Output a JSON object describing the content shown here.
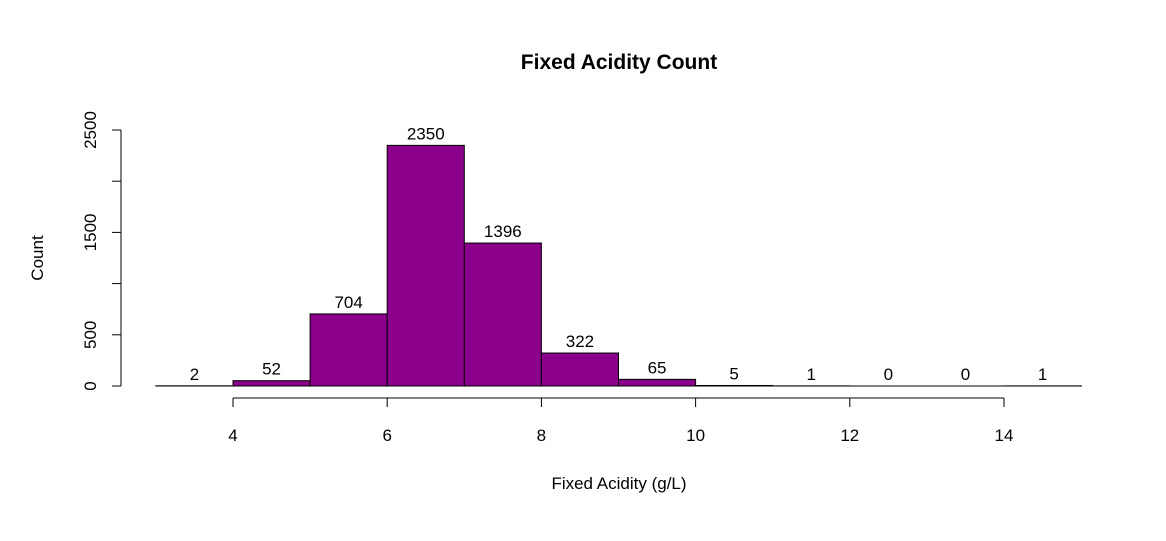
{
  "chart_data": {
    "type": "bar",
    "title": "Fixed Acidity Count",
    "xlabel": "Fixed Acidity (g/L)",
    "ylabel": "Count",
    "bins": [
      {
        "start": 3,
        "end": 4,
        "count": 2
      },
      {
        "start": 4,
        "end": 5,
        "count": 52
      },
      {
        "start": 5,
        "end": 6,
        "count": 704
      },
      {
        "start": 6,
        "end": 7,
        "count": 2350
      },
      {
        "start": 7,
        "end": 8,
        "count": 1396
      },
      {
        "start": 8,
        "end": 9,
        "count": 322
      },
      {
        "start": 9,
        "end": 10,
        "count": 65
      },
      {
        "start": 10,
        "end": 11,
        "count": 5
      },
      {
        "start": 11,
        "end": 12,
        "count": 1
      },
      {
        "start": 12,
        "end": 13,
        "count": 0
      },
      {
        "start": 13,
        "end": 14,
        "count": 0
      },
      {
        "start": 14,
        "end": 15,
        "count": 1
      }
    ],
    "x_ticks": [
      4,
      6,
      8,
      10,
      12,
      14
    ],
    "y_ticks": [
      0,
      500,
      1000,
      1500,
      2000,
      2500
    ],
    "y_tick_labels": [
      "0",
      "500",
      "",
      "1500",
      "",
      "2500"
    ],
    "xlim": [
      3,
      15
    ],
    "ylim": [
      0,
      2500
    ],
    "bar_color": "#8B008B",
    "grid": false,
    "legend": "none"
  }
}
